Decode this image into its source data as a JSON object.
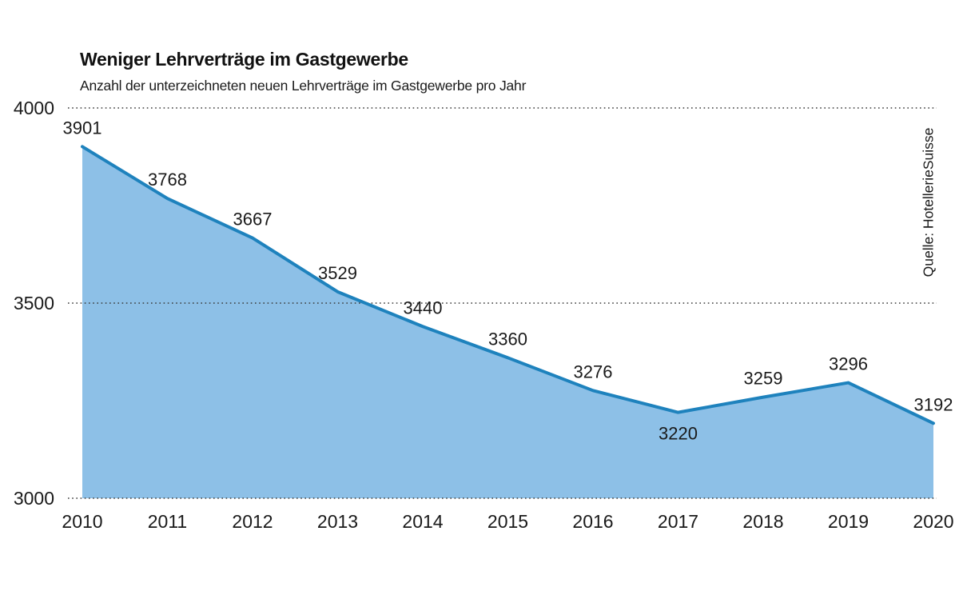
{
  "header": {
    "title": "Weniger Lehrverträge im Gastgewerbe",
    "subtitle": "Anzahl der unterzeichneten neuen Lehrverträge im Gastgewerbe pro Jahr"
  },
  "source": {
    "label": "Quelle: HotellerieSuisse"
  },
  "chart_data": {
    "type": "area",
    "title": "Weniger Lehrverträge im Gastgewerbe",
    "subtitle": "Anzahl der unterzeichneten neuen Lehrverträge im Gastgewerbe pro Jahr",
    "source": "Quelle: HotellerieSuisse",
    "categories": [
      "2010",
      "2011",
      "2012",
      "2013",
      "2014",
      "2015",
      "2016",
      "2017",
      "2018",
      "2019",
      "2020"
    ],
    "values": [
      3901,
      3768,
      3667,
      3529,
      3440,
      3360,
      3276,
      3220,
      3259,
      3296,
      3192
    ],
    "xlabel": "",
    "ylabel": "",
    "ylim": [
      3000,
      4000
    ],
    "y_ticks": [
      3000,
      3500,
      4000
    ],
    "grid": "dotted-horizontal",
    "legend": "none",
    "value_labels": "all-points",
    "label_below_index": 7,
    "colors": {
      "area_fill": "#8dc0e7",
      "line": "#1e82bd",
      "text": "#1a1a1a",
      "grid": "#3a3a3a",
      "background": "#ffffff"
    }
  }
}
